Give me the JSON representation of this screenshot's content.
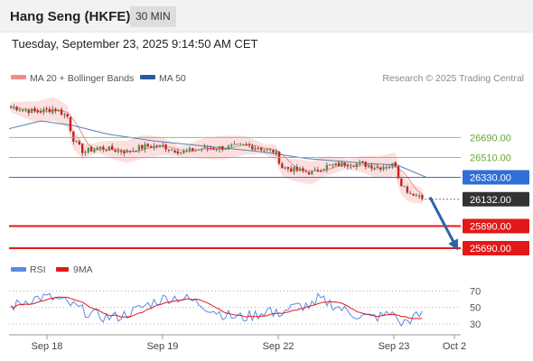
{
  "header": {
    "instrument": "Hang Seng (HKFE)",
    "timeframe": "30 MIN",
    "timestamp": "Tuesday, September 23, 2025 9:14:50 AM CET"
  },
  "colors": {
    "bollinger_band": "#fbd5d5",
    "ma20": "#f08a8a",
    "ma50": "#5b7fb3",
    "resistance": "#8cc461",
    "pivot": "#2f6fd6",
    "support": "#e31919",
    "last_price_tag": "#333333",
    "candle_up": "#4b9a41",
    "candle_down": "#c8201b",
    "rsi": "#5b8be0",
    "rsi_ma": "#e31919",
    "arrow": "#2d63a8"
  },
  "chart_data": [
    {
      "type": "candlestick",
      "title": "",
      "legend": [
        {
          "name": "MA 20 + Bollinger Bands",
          "color": "#f08a8a"
        },
        {
          "name": "MA 50",
          "color": "#2b5a9c"
        }
      ],
      "legend_placement": "top-left",
      "credit": "Research © 2025 Trading Central",
      "x_tick_labels": [
        "Sep 18",
        "Sep 19",
        "Sep 22",
        "Sep 23",
        "Oct 2"
      ],
      "y_range": [
        25600,
        27150
      ],
      "levels": [
        {
          "label": "26690.00",
          "value": 26690,
          "kind": "resistance"
        },
        {
          "label": "26510.00",
          "value": 26510,
          "kind": "resistance"
        },
        {
          "label": "26330.00",
          "value": 26330,
          "kind": "pivot"
        },
        {
          "label": "26132.00",
          "value": 26132,
          "kind": "last"
        },
        {
          "label": "25890.00",
          "value": 25890,
          "kind": "support"
        },
        {
          "label": "25690.00",
          "value": 25690,
          "kind": "support"
        }
      ],
      "arrow": {
        "direction": "down",
        "from": 26150,
        "to": 25700
      }
    },
    {
      "type": "line",
      "title": "",
      "legend": [
        {
          "name": "RSI",
          "color": "#5b8be0"
        },
        {
          "name": "9MA",
          "color": "#e31919"
        }
      ],
      "y_ticks": [
        70,
        50,
        30
      ],
      "ylim": [
        20,
        78
      ]
    }
  ]
}
